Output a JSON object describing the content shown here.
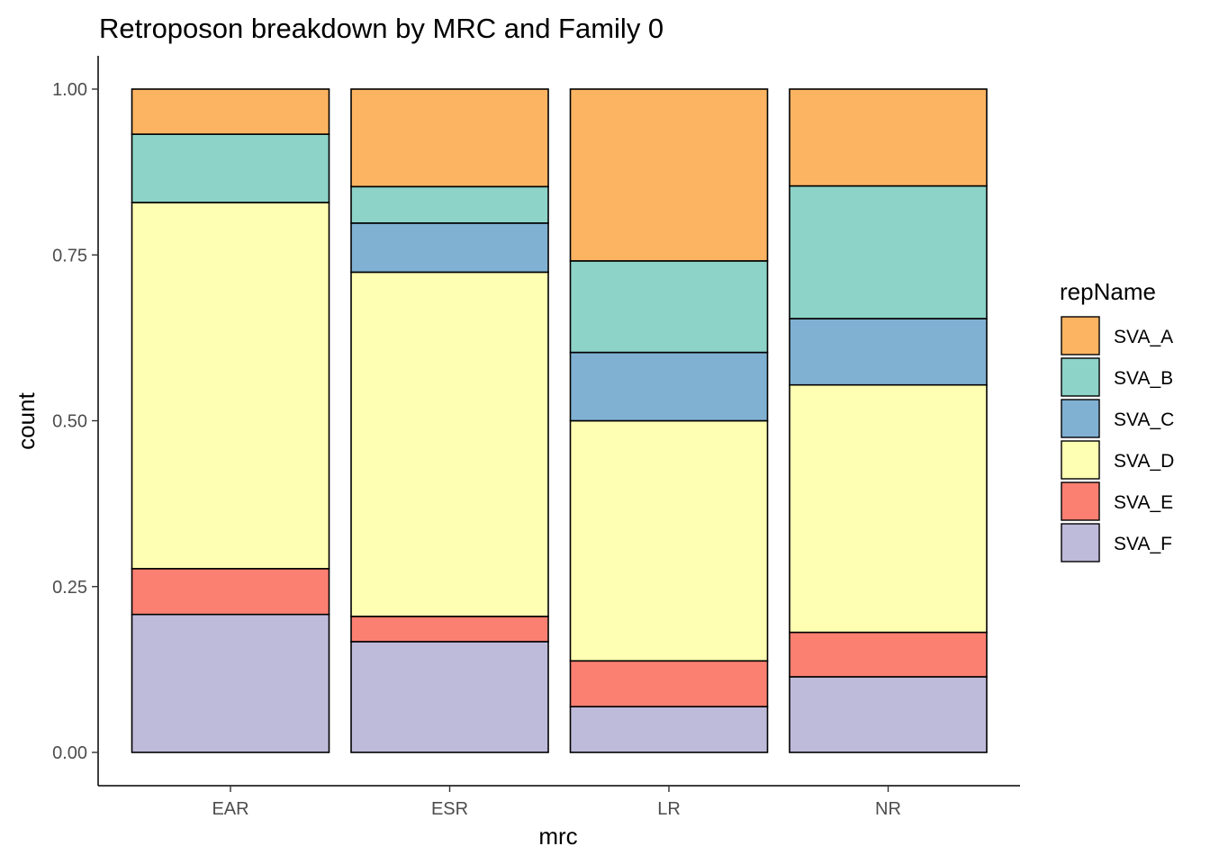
{
  "chart_data": {
    "type": "bar",
    "stacked": "fill",
    "title": "Retroposon breakdown by MRC and Family 0",
    "xlabel": "mrc",
    "ylabel": "count",
    "ylim": [
      0,
      1
    ],
    "yticks": [
      "0.00",
      "0.25",
      "0.50",
      "0.75",
      "1.00"
    ],
    "categories": [
      "EAR",
      "ESR",
      "LR",
      "NR"
    ],
    "legend": {
      "title": "repName",
      "position": "right"
    },
    "grid": false,
    "series": [
      {
        "name": "SVA_A",
        "color": "#FDB462",
        "values": [
          0.068,
          0.147,
          0.259,
          0.146
        ]
      },
      {
        "name": "SVA_B",
        "color": "#8DD3C7",
        "values": [
          0.103,
          0.055,
          0.138,
          0.2
        ]
      },
      {
        "name": "SVA_C",
        "color": "#80B1D3",
        "values": [
          0.0,
          0.074,
          0.103,
          0.1
        ]
      },
      {
        "name": "SVA_D",
        "color": "#FFFFB3",
        "values": [
          0.552,
          0.519,
          0.362,
          0.373
        ]
      },
      {
        "name": "SVA_E",
        "color": "#FB8072",
        "values": [
          0.069,
          0.038,
          0.069,
          0.067
        ]
      },
      {
        "name": "SVA_F",
        "color": "#BEBADA",
        "values": [
          0.208,
          0.167,
          0.069,
          0.114
        ]
      }
    ]
  }
}
